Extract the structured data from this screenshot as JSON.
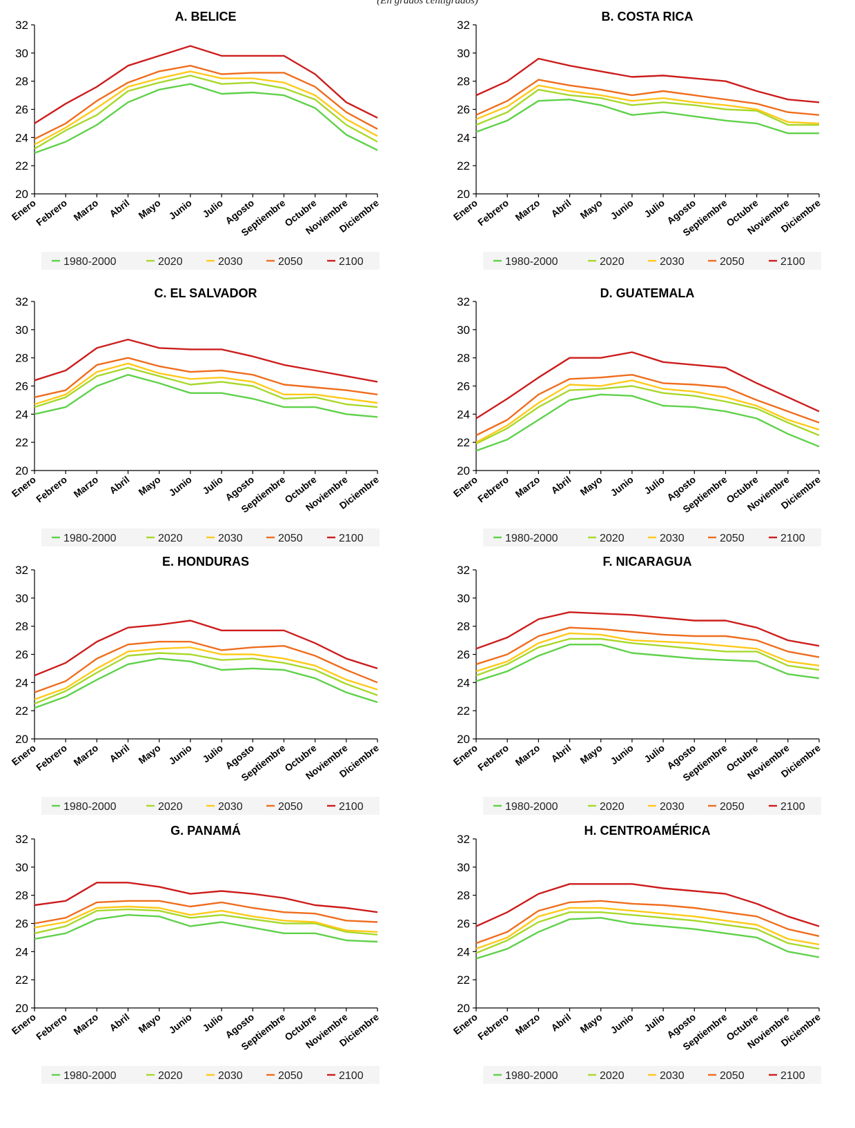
{
  "subtitle": "(En grados centígrados)",
  "series_names": [
    "1980-2000",
    "2020",
    "2030",
    "2050",
    "2100"
  ],
  "series_colors": [
    "#5fd14a",
    "#a8d82a",
    "#ffc91a",
    "#ef6d1e",
    "#cc1d1d"
  ],
  "chart_data": [
    {
      "type": "line",
      "title": "A. BELICE",
      "categories": [
        "Enero",
        "Febrero",
        "Marzo",
        "Abril",
        "Mayo",
        "Junio",
        "Julio",
        "Agosto",
        "Septiembre",
        "Octubre",
        "Noviembre",
        "Diciembre"
      ],
      "ylim": [
        20,
        32
      ],
      "yticks": [
        20,
        22,
        24,
        26,
        28,
        30,
        32
      ],
      "legend": "bottom",
      "series": [
        {
          "name": "1980-2000",
          "values": [
            22.9,
            23.7,
            24.9,
            26.5,
            27.4,
            27.8,
            27.1,
            27.2,
            27.0,
            26.1,
            24.2,
            23.1
          ]
        },
        {
          "name": "2020",
          "values": [
            23.2,
            24.5,
            25.6,
            27.3,
            27.9,
            28.4,
            27.8,
            27.9,
            27.5,
            26.7,
            24.9,
            23.7
          ]
        },
        {
          "name": "2030",
          "values": [
            23.5,
            24.7,
            26.1,
            27.6,
            28.2,
            28.7,
            28.2,
            28.2,
            27.9,
            27.0,
            25.3,
            24.1
          ]
        },
        {
          "name": "2050",
          "values": [
            23.9,
            25.0,
            26.6,
            27.9,
            28.7,
            29.1,
            28.5,
            28.6,
            28.6,
            27.6,
            25.8,
            24.6
          ]
        },
        {
          "name": "2100",
          "values": [
            25.0,
            26.4,
            27.6,
            29.1,
            29.8,
            30.5,
            29.8,
            29.8,
            29.8,
            28.5,
            26.5,
            25.4
          ]
        }
      ]
    },
    {
      "type": "line",
      "title": "B. COSTA RICA",
      "categories": [
        "Enero",
        "Febrero",
        "Marzo",
        "Abril",
        "Mayo",
        "Junio",
        "Julio",
        "Agosto",
        "Septiembre",
        "Octubre",
        "Noviembre",
        "Diciembre"
      ],
      "ylim": [
        20,
        32
      ],
      "yticks": [
        20,
        22,
        24,
        26,
        28,
        30,
        32
      ],
      "legend": "bottom",
      "series": [
        {
          "name": "1980-2000",
          "values": [
            24.4,
            25.2,
            26.6,
            26.7,
            26.3,
            25.6,
            25.8,
            25.5,
            25.2,
            25.0,
            24.3,
            24.3
          ]
        },
        {
          "name": "2020",
          "values": [
            24.9,
            25.8,
            27.4,
            27.0,
            26.8,
            26.3,
            26.5,
            26.3,
            26.0,
            25.9,
            24.9,
            24.9
          ]
        },
        {
          "name": "2030",
          "values": [
            25.3,
            26.2,
            27.7,
            27.3,
            27.0,
            26.6,
            26.8,
            26.5,
            26.3,
            26.0,
            25.1,
            25.0
          ]
        },
        {
          "name": "2050",
          "values": [
            25.6,
            26.6,
            28.1,
            27.7,
            27.4,
            27.0,
            27.3,
            27.0,
            26.7,
            26.4,
            25.8,
            25.6
          ]
        },
        {
          "name": "2100",
          "values": [
            27.0,
            28.0,
            29.6,
            29.1,
            28.7,
            28.3,
            28.4,
            28.2,
            28.0,
            27.3,
            26.7,
            26.5
          ]
        }
      ]
    },
    {
      "type": "line",
      "title": "C. EL SALVADOR",
      "categories": [
        "Enero",
        "Febrero",
        "Marzo",
        "Abril",
        "Mayo",
        "Junio",
        "Julio",
        "Agosto",
        "Septiembre",
        "Octubre",
        "Noviembre",
        "Diciembre"
      ],
      "ylim": [
        20,
        32
      ],
      "yticks": [
        20,
        22,
        24,
        26,
        28,
        30,
        32
      ],
      "legend": "bottom",
      "series": [
        {
          "name": "1980-2000",
          "values": [
            24.0,
            24.5,
            26.0,
            26.8,
            26.2,
            25.5,
            25.5,
            25.1,
            24.5,
            24.5,
            24.0,
            23.8
          ]
        },
        {
          "name": "2020",
          "values": [
            24.5,
            25.2,
            26.7,
            27.3,
            26.7,
            26.1,
            26.3,
            26.0,
            25.1,
            25.2,
            24.7,
            24.5
          ]
        },
        {
          "name": "2030",
          "values": [
            24.7,
            25.4,
            27.0,
            27.6,
            26.9,
            26.5,
            26.6,
            26.3,
            25.4,
            25.4,
            25.1,
            24.8
          ]
        },
        {
          "name": "2050",
          "values": [
            25.2,
            25.7,
            27.5,
            28.0,
            27.4,
            27.0,
            27.1,
            26.8,
            26.1,
            25.9,
            25.7,
            25.4
          ]
        },
        {
          "name": "2100",
          "values": [
            26.4,
            27.1,
            28.7,
            29.3,
            28.7,
            28.6,
            28.6,
            28.1,
            27.5,
            27.1,
            26.7,
            26.3
          ]
        }
      ]
    },
    {
      "type": "line",
      "title": "D. GUATEMALA",
      "categories": [
        "Enero",
        "Febrero",
        "Marzo",
        "Abril",
        "Mayo",
        "Junio",
        "Julio",
        "Agosto",
        "Septiembre",
        "Octubre",
        "Noviembre",
        "Diciembre"
      ],
      "ylim": [
        20,
        32
      ],
      "yticks": [
        20,
        22,
        24,
        26,
        28,
        30,
        32
      ],
      "legend": "bottom",
      "series": [
        {
          "name": "1980-2000",
          "values": [
            21.4,
            22.2,
            23.6,
            25.0,
            25.4,
            25.3,
            24.6,
            24.5,
            24.2,
            23.7,
            22.6,
            21.7
          ]
        },
        {
          "name": "2020",
          "values": [
            21.9,
            23.0,
            24.5,
            25.7,
            25.8,
            26.0,
            25.5,
            25.3,
            24.9,
            24.4,
            23.4,
            22.5
          ]
        },
        {
          "name": "2030",
          "values": [
            22.0,
            23.2,
            24.8,
            26.1,
            26.0,
            26.4,
            25.8,
            25.6,
            25.2,
            24.6,
            23.6,
            22.9
          ]
        },
        {
          "name": "2050",
          "values": [
            22.5,
            23.6,
            25.4,
            26.5,
            26.6,
            26.8,
            26.2,
            26.1,
            25.9,
            25.0,
            24.2,
            23.4
          ]
        },
        {
          "name": "2100",
          "values": [
            23.7,
            25.1,
            26.6,
            28.0,
            28.0,
            28.4,
            27.7,
            27.5,
            27.3,
            26.2,
            25.2,
            24.2
          ]
        }
      ]
    },
    {
      "type": "line",
      "title": "E. HONDURAS",
      "categories": [
        "Enero",
        "Febrero",
        "Marzo",
        "Abril",
        "Mayo",
        "Junio",
        "Julio",
        "Agosto",
        "Septiembre",
        "Octubre",
        "Noviembre",
        "Diciembre"
      ],
      "ylim": [
        20,
        32
      ],
      "yticks": [
        20,
        22,
        24,
        26,
        28,
        30,
        32
      ],
      "legend": "bottom",
      "series": [
        {
          "name": "1980-2000",
          "values": [
            22.2,
            23.0,
            24.2,
            25.3,
            25.7,
            25.5,
            24.9,
            25.0,
            24.9,
            24.3,
            23.3,
            22.6
          ]
        },
        {
          "name": "2020",
          "values": [
            22.5,
            23.4,
            24.7,
            25.9,
            26.1,
            26.0,
            25.6,
            25.7,
            25.4,
            24.9,
            23.9,
            23.1
          ]
        },
        {
          "name": "2030",
          "values": [
            22.8,
            23.6,
            25.0,
            26.2,
            26.4,
            26.5,
            26.0,
            26.0,
            25.7,
            25.2,
            24.2,
            23.5
          ]
        },
        {
          "name": "2050",
          "values": [
            23.3,
            24.1,
            25.7,
            26.7,
            26.9,
            26.9,
            26.3,
            26.5,
            26.6,
            25.9,
            24.9,
            24.0
          ]
        },
        {
          "name": "2100",
          "values": [
            24.5,
            25.4,
            26.9,
            27.9,
            28.1,
            28.4,
            27.7,
            27.7,
            27.7,
            26.8,
            25.7,
            25.0
          ]
        }
      ]
    },
    {
      "type": "line",
      "title": "F. NICARAGUA",
      "categories": [
        "Enero",
        "Febrero",
        "Marzo",
        "Abril",
        "Mayo",
        "Junio",
        "Julio",
        "Agosto",
        "Septiembre",
        "Octubre",
        "Noviembre",
        "Diciembre"
      ],
      "ylim": [
        20,
        32
      ],
      "yticks": [
        20,
        22,
        24,
        26,
        28,
        30,
        32
      ],
      "legend": "bottom",
      "series": [
        {
          "name": "1980-2000",
          "values": [
            24.1,
            24.8,
            25.9,
            26.7,
            26.7,
            26.1,
            25.9,
            25.7,
            25.6,
            25.5,
            24.6,
            24.3
          ]
        },
        {
          "name": "2020",
          "values": [
            24.5,
            25.3,
            26.5,
            27.1,
            27.1,
            26.8,
            26.6,
            26.4,
            26.2,
            26.2,
            25.2,
            24.9
          ]
        },
        {
          "name": "2030",
          "values": [
            24.8,
            25.5,
            26.8,
            27.5,
            27.4,
            27.0,
            26.9,
            26.8,
            26.6,
            26.4,
            25.5,
            25.2
          ]
        },
        {
          "name": "2050",
          "values": [
            25.3,
            26.0,
            27.3,
            27.9,
            27.8,
            27.6,
            27.4,
            27.3,
            27.3,
            27.0,
            26.2,
            25.8
          ]
        },
        {
          "name": "2100",
          "values": [
            26.4,
            27.2,
            28.5,
            29.0,
            28.9,
            28.8,
            28.6,
            28.4,
            28.4,
            27.9,
            27.0,
            26.6
          ]
        }
      ]
    },
    {
      "type": "line",
      "title": "G. PANAMÁ",
      "categories": [
        "Enero",
        "Febrero",
        "Marzo",
        "Abril",
        "Mayo",
        "Junio",
        "Julio",
        "Agosto",
        "Septiembre",
        "Octubre",
        "Noviembre",
        "Diciembre"
      ],
      "ylim": [
        20,
        32
      ],
      "yticks": [
        20,
        22,
        24,
        26,
        28,
        30,
        32
      ],
      "legend": "bottom",
      "series": [
        {
          "name": "1980-2000",
          "values": [
            24.9,
            25.3,
            26.3,
            26.6,
            26.5,
            25.8,
            26.1,
            25.7,
            25.3,
            25.3,
            24.8,
            24.7
          ]
        },
        {
          "name": "2020",
          "values": [
            25.3,
            25.8,
            26.9,
            27.0,
            26.9,
            26.4,
            26.6,
            26.3,
            26.0,
            26.0,
            25.4,
            25.2
          ]
        },
        {
          "name": "2030",
          "values": [
            25.7,
            26.1,
            27.1,
            27.2,
            27.1,
            26.6,
            26.9,
            26.5,
            26.2,
            26.1,
            25.5,
            25.4
          ]
        },
        {
          "name": "2050",
          "values": [
            26.0,
            26.4,
            27.5,
            27.6,
            27.6,
            27.2,
            27.5,
            27.1,
            26.8,
            26.7,
            26.2,
            26.1
          ]
        },
        {
          "name": "2100",
          "values": [
            27.3,
            27.6,
            28.9,
            28.9,
            28.6,
            28.1,
            28.3,
            28.1,
            27.8,
            27.3,
            27.1,
            26.8
          ]
        }
      ]
    },
    {
      "type": "line",
      "title": "H. CENTROAMÉRICA",
      "categories": [
        "Enero",
        "Febrero",
        "Marzo",
        "Abril",
        "Mayo",
        "Junio",
        "Julio",
        "Agosto",
        "Septiembre",
        "Octubre",
        "Noviembre",
        "Diciembre"
      ],
      "ylim": [
        20,
        32
      ],
      "yticks": [
        20,
        22,
        24,
        26,
        28,
        30,
        32
      ],
      "legend": "bottom",
      "series": [
        {
          "name": "1980-2000",
          "values": [
            23.5,
            24.2,
            25.4,
            26.3,
            26.4,
            26.0,
            25.8,
            25.6,
            25.3,
            25.0,
            24.0,
            23.6
          ]
        },
        {
          "name": "2020",
          "values": [
            23.9,
            24.8,
            26.1,
            26.8,
            26.8,
            26.6,
            26.4,
            26.2,
            25.9,
            25.6,
            24.6,
            24.2
          ]
        },
        {
          "name": "2030",
          "values": [
            24.2,
            25.0,
            26.5,
            27.1,
            27.1,
            26.9,
            26.7,
            26.5,
            26.2,
            25.9,
            24.9,
            24.5
          ]
        },
        {
          "name": "2050",
          "values": [
            24.6,
            25.4,
            26.9,
            27.5,
            27.6,
            27.4,
            27.3,
            27.1,
            26.8,
            26.5,
            25.6,
            25.1
          ]
        },
        {
          "name": "2100",
          "values": [
            25.8,
            26.8,
            28.1,
            28.8,
            28.8,
            28.8,
            28.5,
            28.3,
            28.1,
            27.4,
            26.5,
            25.8
          ]
        }
      ]
    }
  ]
}
